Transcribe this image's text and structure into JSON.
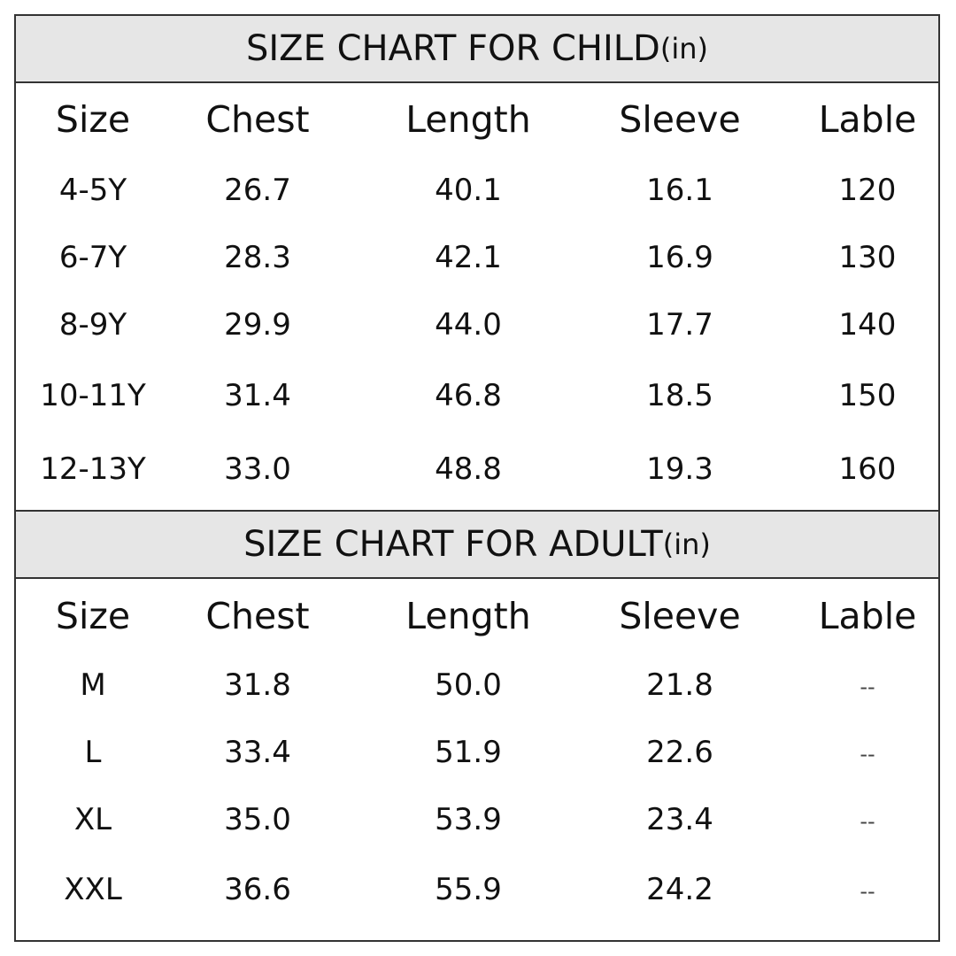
{
  "child_chart": {
    "title": "SIZE CHART FOR CHILD",
    "unit": "(in)",
    "headers": [
      "Size",
      "Chest",
      "Length",
      "Sleeve",
      "Lable"
    ],
    "rows": [
      [
        "4-5Y",
        "26.7",
        "40.1",
        "16.1",
        "120"
      ],
      [
        "6-7Y",
        "28.3",
        "42.1",
        "16.9",
        "130"
      ],
      [
        "8-9Y",
        "29.9",
        "44.0",
        "17.7",
        "140"
      ],
      [
        "10-11Y",
        "31.4",
        "46.8",
        "18.5",
        "150"
      ],
      [
        "12-13Y",
        "33.0",
        "48.8",
        "19.3",
        "160"
      ]
    ]
  },
  "adult_chart": {
    "title": "SIZE CHART FOR ADULT",
    "unit": "(in)",
    "headers": [
      "Size",
      "Chest",
      "Length",
      "Sleeve",
      "Lable"
    ],
    "rows": [
      [
        "M",
        "31.8",
        "50.0",
        "21.8",
        "--"
      ],
      [
        "L",
        "33.4",
        "51.9",
        "22.6",
        "--"
      ],
      [
        "XL",
        "35.0",
        "53.9",
        "23.4",
        "--"
      ],
      [
        "XXL",
        "36.6",
        "55.9",
        "24.2",
        "--"
      ]
    ]
  }
}
